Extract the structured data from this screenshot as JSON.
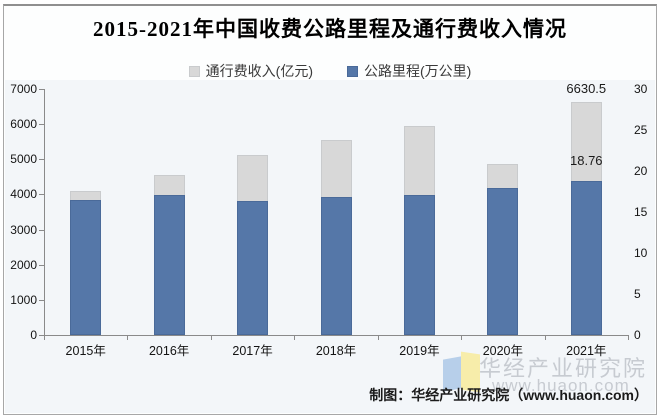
{
  "title": "2015-2021年中国收费公路里程及通行费收入情况",
  "chart_data": {
    "type": "bar",
    "title": "2015-2021年中国收费公路里程及通行费收入情况",
    "categories": [
      "2015年",
      "2016年",
      "2017年",
      "2018年",
      "2019年",
      "2020年",
      "2021年"
    ],
    "series": [
      {
        "name": "通行费收入(亿元)",
        "slug": "toll-revenue",
        "axis": "left",
        "color": "#d8d8d8",
        "border_color": "#c9cbcd",
        "values": [
          4097.8,
          4548.5,
          5130.2,
          5552.4,
          5937.9,
          4868.2,
          6630.5
        ]
      },
      {
        "name": "公路里程(万公里)",
        "slug": "road-mileage",
        "axis": "right",
        "color": "#5577a8",
        "border_color": "#4a6a99",
        "values": [
          16.44,
          17.11,
          16.37,
          16.81,
          17.11,
          17.92,
          18.76
        ]
      }
    ],
    "axes": {
      "left": {
        "min": 0,
        "max": 7000,
        "ticks": [
          0,
          1000,
          2000,
          3000,
          4000,
          5000,
          6000,
          7000
        ]
      },
      "right": {
        "min": 0,
        "max": 30,
        "ticks": [
          0,
          5,
          10,
          15,
          20,
          25,
          30
        ]
      }
    },
    "legend_position": "top",
    "grid": false,
    "data_labels": [
      {
        "text": "6630.5",
        "series_index": 0,
        "category_index": 6
      },
      {
        "text": "18.76",
        "series_index": 1,
        "category_index": 6
      }
    ]
  },
  "footer": {
    "caption": "制图：华经产业研究院（www.huaon.com）"
  },
  "watermark": {
    "name": "华经产业研究院",
    "url": "www.huaon.com"
  }
}
